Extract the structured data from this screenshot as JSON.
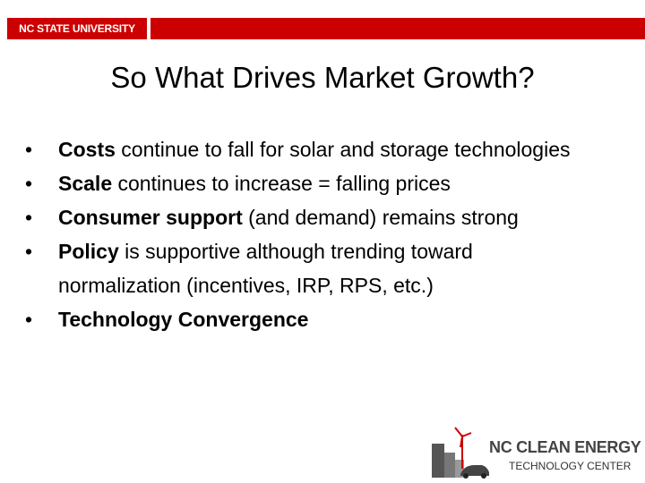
{
  "header": {
    "logo": "NC STATE UNIVERSITY"
  },
  "title": "So What Drives Market Growth?",
  "bullets": [
    {
      "bold": "Costs",
      "text": " continue to fall for solar and storage technologies"
    },
    {
      "bold": "Scale",
      "text": " continues to increase = falling prices"
    },
    {
      "bold": "Consumer support",
      "text": " (and demand) remains strong"
    },
    {
      "bold": "Policy",
      "text": " is supportive although trending toward normalization (incentives, IRP, RPS, etc.)"
    },
    {
      "bold": "Technology Convergence"
    }
  ],
  "footer": {
    "logo_line1": "NC CLEAN ENERGY",
    "logo_line2": "TECHNOLOGY CENTER"
  }
}
